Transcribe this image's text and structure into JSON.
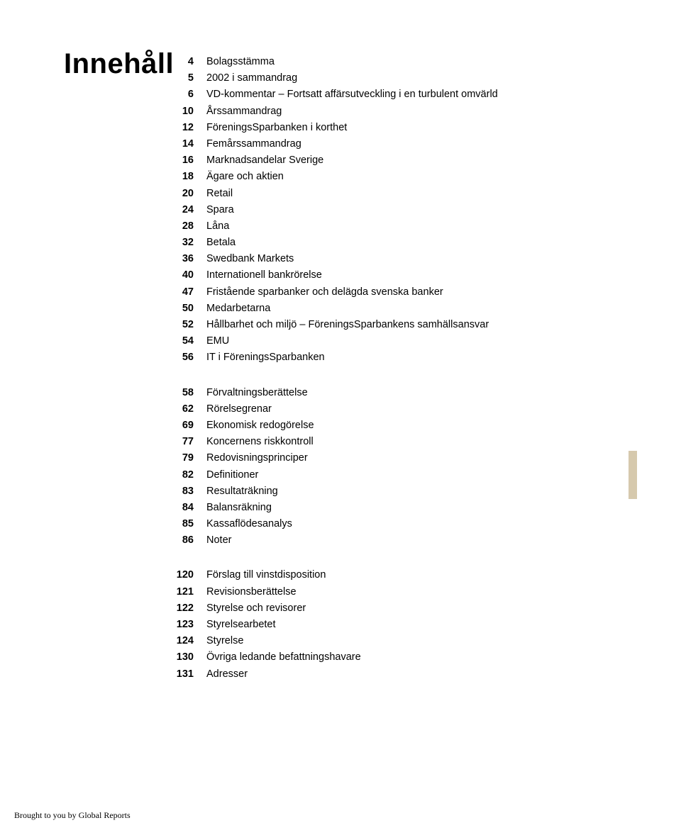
{
  "title": "Innehåll",
  "footer": "Brought to you by Global Reports",
  "colors": {
    "background": "#ffffff",
    "text": "#000000",
    "accent_bar": "#d6c9ad"
  },
  "typography": {
    "title_fontsize": 40,
    "title_weight": "bold",
    "body_fontsize": 14.5,
    "footer_fontsize": 12,
    "footer_family": "Times New Roman"
  },
  "sections": [
    {
      "items": [
        {
          "num": "4",
          "label": "Bolagsstämma"
        },
        {
          "num": "5",
          "label": "2002 i sammandrag"
        },
        {
          "num": "6",
          "label": "VD-kommentar – Fortsatt affärsutveckling i en turbulent omvärld"
        },
        {
          "num": "10",
          "label": "Årssammandrag"
        },
        {
          "num": "12",
          "label": "FöreningsSparbanken i korthet"
        },
        {
          "num": "14",
          "label": "Femårssammandrag"
        },
        {
          "num": "16",
          "label": "Marknadsandelar Sverige"
        },
        {
          "num": "18",
          "label": "Ägare och aktien"
        },
        {
          "num": "20",
          "label": "Retail"
        },
        {
          "num": "24",
          "label": "Spara"
        },
        {
          "num": "28",
          "label": "Låna"
        },
        {
          "num": "32",
          "label": "Betala"
        },
        {
          "num": "36",
          "label": "Swedbank Markets"
        },
        {
          "num": "40",
          "label": "Internationell bankrörelse"
        },
        {
          "num": "47",
          "label": "Fristående sparbanker och delägda svenska banker"
        },
        {
          "num": "50",
          "label": "Medarbetarna"
        },
        {
          "num": "52",
          "label": "Hållbarhet och miljö – FöreningsSparbankens samhällsansvar"
        },
        {
          "num": "54",
          "label": "EMU"
        },
        {
          "num": "56",
          "label": "IT i FöreningsSparbanken"
        }
      ]
    },
    {
      "items": [
        {
          "num": "58",
          "label": "Förvaltningsberättelse"
        },
        {
          "num": "62",
          "label": "Rörelsegrenar"
        },
        {
          "num": "69",
          "label": "Ekonomisk redogörelse"
        },
        {
          "num": "77",
          "label": "Koncernens riskkontroll"
        },
        {
          "num": "79",
          "label": "Redovisningsprinciper"
        },
        {
          "num": "82",
          "label": "Definitioner"
        },
        {
          "num": "83",
          "label": "Resultaträkning"
        },
        {
          "num": "84",
          "label": "Balansräkning"
        },
        {
          "num": "85",
          "label": "Kassaflödesanalys"
        },
        {
          "num": "86",
          "label": "Noter"
        }
      ]
    },
    {
      "items": [
        {
          "num": "120",
          "label": "Förslag till vinstdisposition"
        },
        {
          "num": "121",
          "label": "Revisionsberättelse"
        },
        {
          "num": "122",
          "label": "Styrelse och revisorer"
        },
        {
          "num": "123",
          "label": "Styrelsearbetet"
        },
        {
          "num": "124",
          "label": "Styrelse"
        },
        {
          "num": "130",
          "label": "Övriga ledande befattningshavare"
        },
        {
          "num": "131",
          "label": "Adresser"
        }
      ]
    }
  ]
}
